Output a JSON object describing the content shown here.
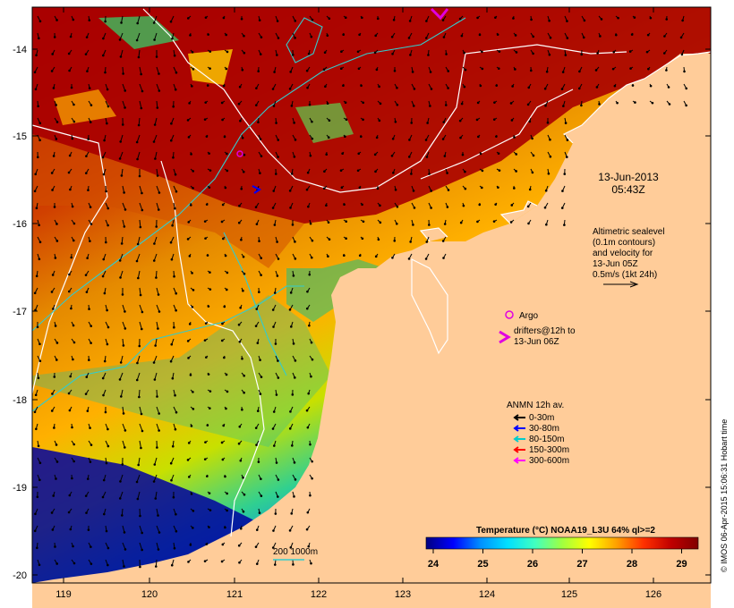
{
  "map": {
    "lat_ticks": [
      "-14",
      "-15",
      "-16",
      "-17",
      "-18",
      "-19",
      "-20"
    ],
    "lon_ticks": [
      "119",
      "120",
      "121",
      "122",
      "123",
      "124",
      "125",
      "126"
    ],
    "colors": {
      "land": "#ffcc99",
      "warm": "#a80000",
      "mid": "#e07a00",
      "cool": "#00b4b4",
      "deep": "#0000a0",
      "contour": "#ffffff",
      "isobath": "#33cccc"
    }
  },
  "date_stamp": {
    "line1": "13-Jun-2013",
    "line2": "05:43Z"
  },
  "altimetry_note": {
    "line1": "Altimetric sealevel",
    "line2": "(0.1m contours)",
    "line3": "and velocity for",
    "line4": "13-Jun 05Z",
    "line5": "0.5m/s (1kt 24h)"
  },
  "argo_legend": {
    "label": "Argo",
    "color": "#e000e0"
  },
  "drifter_legend": {
    "line1": "drifters@12h to",
    "line2": "13-Jun 06Z",
    "color": "#e000e0"
  },
  "anmn_legend": {
    "title": "ANMN 12h av.",
    "items": [
      {
        "label": "0-30m",
        "color": "#000000"
      },
      {
        "label": "30-80m",
        "color": "#0000ff"
      },
      {
        "label": "80-150m",
        "color": "#00cccc"
      },
      {
        "label": "150-300m",
        "color": "#ff0000"
      },
      {
        "label": "300-600m",
        "color": "#ff00ff"
      }
    ]
  },
  "isobath_label": "200  1000m",
  "colorbar": {
    "title": "Temperature (°C) NOAA19_L3U 64% ql>=2",
    "ticks": [
      "24",
      "25",
      "26",
      "27",
      "28",
      "29"
    ],
    "stops": [
      "#000080",
      "#0000ff",
      "#0090ff",
      "#00e0ff",
      "#40ffc0",
      "#a0ff40",
      "#ffff00",
      "#ffa000",
      "#ff3000",
      "#c00000",
      "#800000"
    ]
  },
  "credit": "© IMOS 06-Apr-2015 15:06:31 Hobart time"
}
